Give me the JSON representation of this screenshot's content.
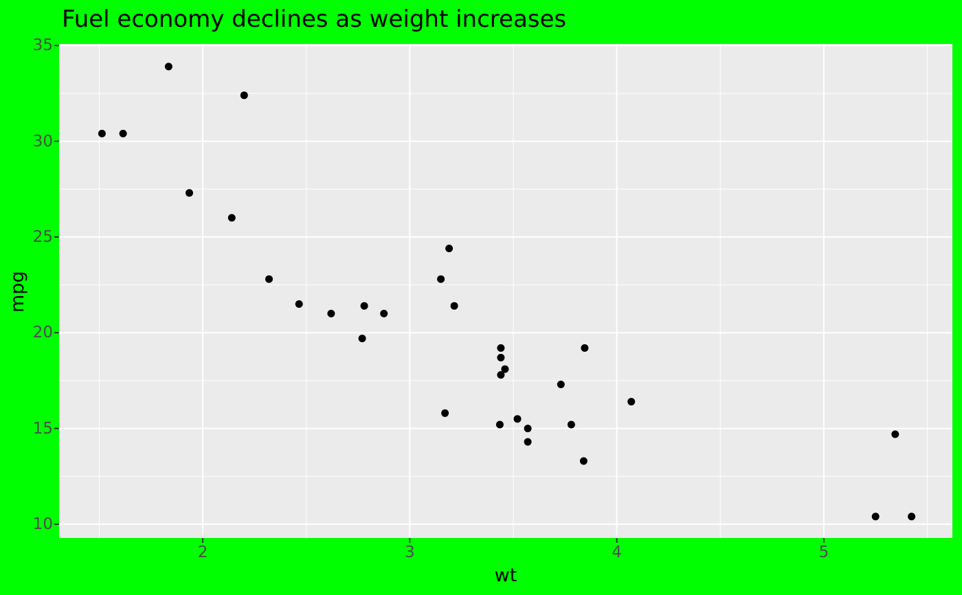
{
  "chart_data": {
    "type": "scatter",
    "title": "Fuel economy declines as weight increases",
    "xlabel": "wt",
    "ylabel": "mpg",
    "legend": "none",
    "grid": "major-and-minor-white",
    "xlim": [
      1.306,
      5.621
    ],
    "ylim": [
      9.28,
      35.08
    ],
    "x_ticks": [
      2,
      3,
      4,
      5
    ],
    "y_ticks": [
      10,
      15,
      20,
      25,
      30,
      35
    ],
    "x_minor_ticks": [
      1.5,
      2.5,
      3.5,
      4.5,
      5.5
    ],
    "y_minor_ticks": [
      12.5,
      17.5,
      22.5,
      27.5,
      32.5
    ],
    "points": [
      {
        "wt": 2.62,
        "mpg": 21.0
      },
      {
        "wt": 2.875,
        "mpg": 21.0
      },
      {
        "wt": 2.32,
        "mpg": 22.8
      },
      {
        "wt": 3.215,
        "mpg": 21.4
      },
      {
        "wt": 3.44,
        "mpg": 18.7
      },
      {
        "wt": 3.46,
        "mpg": 18.1
      },
      {
        "wt": 3.57,
        "mpg": 14.3
      },
      {
        "wt": 3.19,
        "mpg": 24.4
      },
      {
        "wt": 3.15,
        "mpg": 22.8
      },
      {
        "wt": 3.44,
        "mpg": 19.2
      },
      {
        "wt": 3.44,
        "mpg": 17.8
      },
      {
        "wt": 4.07,
        "mpg": 16.4
      },
      {
        "wt": 3.73,
        "mpg": 17.3
      },
      {
        "wt": 3.78,
        "mpg": 15.2
      },
      {
        "wt": 5.25,
        "mpg": 10.4
      },
      {
        "wt": 5.424,
        "mpg": 10.4
      },
      {
        "wt": 5.345,
        "mpg": 14.7
      },
      {
        "wt": 2.2,
        "mpg": 32.4
      },
      {
        "wt": 1.615,
        "mpg": 30.4
      },
      {
        "wt": 1.835,
        "mpg": 33.9
      },
      {
        "wt": 2.465,
        "mpg": 21.5
      },
      {
        "wt": 3.52,
        "mpg": 15.5
      },
      {
        "wt": 3.435,
        "mpg": 15.2
      },
      {
        "wt": 3.84,
        "mpg": 13.3
      },
      {
        "wt": 3.845,
        "mpg": 19.2
      },
      {
        "wt": 1.935,
        "mpg": 27.3
      },
      {
        "wt": 2.14,
        "mpg": 26.0
      },
      {
        "wt": 1.513,
        "mpg": 30.4
      },
      {
        "wt": 3.17,
        "mpg": 15.8
      },
      {
        "wt": 2.77,
        "mpg": 19.7
      },
      {
        "wt": 3.57,
        "mpg": 15.0
      },
      {
        "wt": 2.78,
        "mpg": 21.4
      }
    ],
    "point_radius": 5.5,
    "colors": {
      "figure_background": "#00FF00",
      "panel_background": "#EBEBEB",
      "grid_line": "#FFFFFF",
      "point": "#000000",
      "title_text": "#000000",
      "axis_title_text": "#000000",
      "tick_label_text": "#4D4D4D",
      "tick_mark": "#333333"
    }
  }
}
